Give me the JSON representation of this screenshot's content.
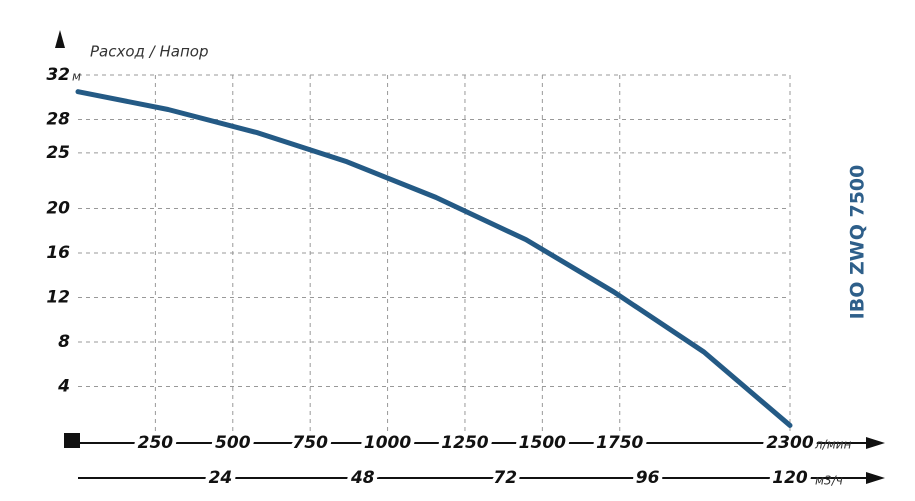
{
  "chart_data": {
    "type": "line",
    "title": "IBO ZWQ 7500",
    "y_label": "Расход / Напор",
    "y_unit": "м",
    "x_unit": "л/мин",
    "x2_unit": "м3/ч",
    "x": [
      0,
      291,
      581,
      869,
      1156,
      1447,
      1731,
      2022,
      2300
    ],
    "series": [
      {
        "color": "#245a85",
        "values": [
          30.5,
          28.9,
          26.8,
          24.2,
          21.0,
          17.2,
          12.5,
          7.1,
          0.5
        ]
      }
    ],
    "xlim": [
      0,
      2300
    ],
    "xticks": [
      250,
      500,
      750,
      1000,
      1250,
      1500,
      1750,
      2300
    ],
    "x2lim": [
      0,
      120
    ],
    "x2ticks": [
      24,
      48,
      72,
      96,
      120
    ],
    "ylim": [
      0,
      32
    ],
    "yticks": [
      4,
      8,
      12,
      16,
      20,
      25,
      28,
      32
    ],
    "grid": true
  }
}
